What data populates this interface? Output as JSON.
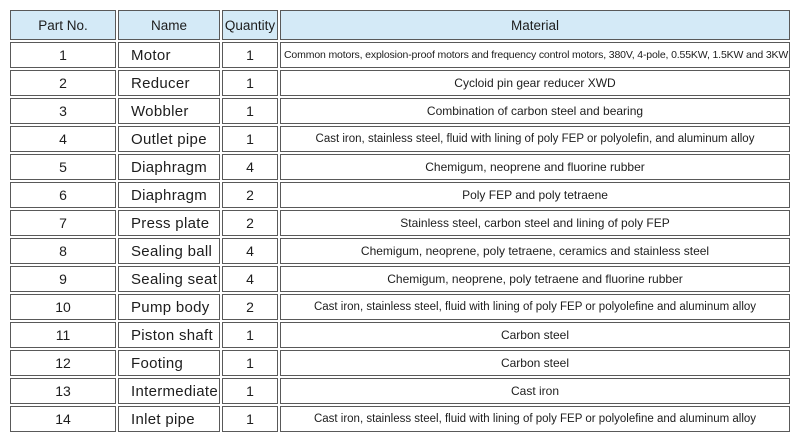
{
  "colors": {
    "header_bg": "#d4eaf7",
    "border": "#595959",
    "text": "#1d1d1d",
    "row_bg": "#ffffff"
  },
  "table": {
    "headers": [
      "Part No.",
      "Name",
      "Quantity",
      "Material"
    ],
    "rows": [
      {
        "part_no": "1",
        "name": "Motor",
        "quantity": "1",
        "material": "Common motors, explosion-proof motors and frequency control motors, 380V, 4-pole, 0.55KW, 1.5KW and 3KW"
      },
      {
        "part_no": "2",
        "name": "Reducer",
        "quantity": "1",
        "material": "Cycloid pin gear reducer XWD"
      },
      {
        "part_no": "3",
        "name": "Wobbler",
        "quantity": "1",
        "material": "Combination of carbon steel and bearing"
      },
      {
        "part_no": "4",
        "name": "Outlet pipe",
        "quantity": "1",
        "material": "Cast iron, stainless steel, fluid with lining of poly FEP or polyolefin, and aluminum alloy"
      },
      {
        "part_no": "5",
        "name": "Diaphragm",
        "quantity": "4",
        "material": "Chemigum, neoprene and fluorine rubber"
      },
      {
        "part_no": "6",
        "name": "Diaphragm",
        "quantity": "2",
        "material": "Poly FEP and poly tetraene"
      },
      {
        "part_no": "7",
        "name": "Press plate",
        "quantity": "2",
        "material": "Stainless steel, carbon steel and lining of poly FEP"
      },
      {
        "part_no": "8",
        "name": "Sealing ball",
        "quantity": "4",
        "material": "Chemigum, neoprene, poly tetraene, ceramics and stainless steel"
      },
      {
        "part_no": "9",
        "name": "Sealing seat",
        "quantity": "4",
        "material": "Chemigum, neoprene, poly tetraene and fluorine rubber"
      },
      {
        "part_no": "10",
        "name": "Pump body",
        "quantity": "2",
        "material": "Cast iron, stainless steel, fluid with lining of poly FEP or polyolefine and aluminum alloy"
      },
      {
        "part_no": "11",
        "name": "Piston shaft",
        "quantity": "1",
        "material": "Carbon steel"
      },
      {
        "part_no": "12",
        "name": "Footing",
        "quantity": "1",
        "material": "Carbon steel"
      },
      {
        "part_no": "13",
        "name": "Intermediate",
        "quantity": "1",
        "material": "Cast iron"
      },
      {
        "part_no": "14",
        "name": "Inlet pipe",
        "quantity": "1",
        "material": "Cast iron, stainless steel, fluid with lining of poly FEP or polyolefine and aluminum alloy"
      }
    ]
  }
}
